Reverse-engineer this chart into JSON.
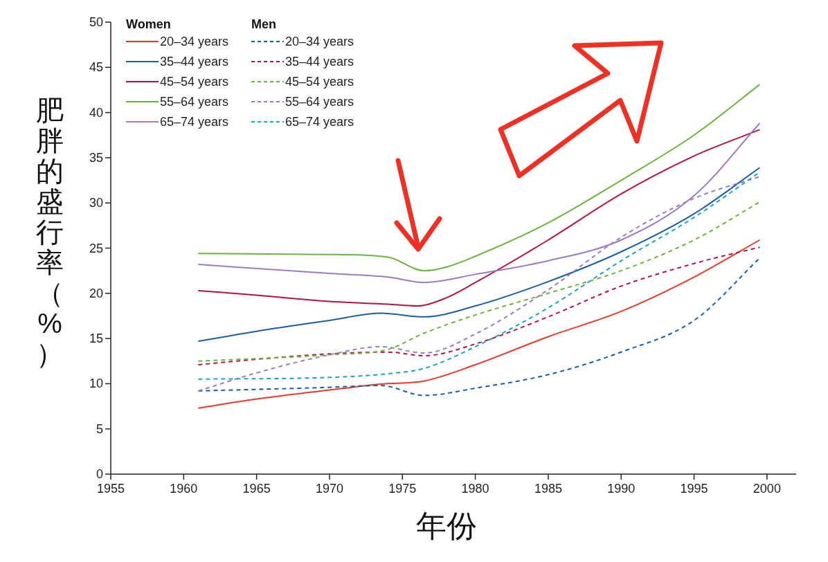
{
  "chart_data": {
    "type": "line",
    "xlabel": "年份",
    "ylabel": "肥胖的盛行率（%）",
    "legend_title": [
      "Women",
      "Men"
    ],
    "legend": "top left",
    "grid": false,
    "xlim": [
      1955,
      2002
    ],
    "xticks": [
      1955,
      1960,
      1965,
      1970,
      1975,
      1980,
      1985,
      1990,
      1995,
      2000
    ],
    "ylim": [
      0,
      50
    ],
    "yticks": [
      0,
      5,
      10,
      15,
      20,
      25,
      30,
      35,
      40,
      45,
      50
    ],
    "series": [
      {
        "name": "20–34 years",
        "color": "#e8392b",
        "line_style": "solid",
        "x": [
          1961,
          1965,
          1970,
          1973.5,
          1976.5,
          1980,
          1985,
          1990,
          1995,
          1999.5
        ],
        "values": [
          7.3,
          8.3,
          9.3,
          9.95,
          10.3,
          12.1,
          15.2,
          18.0,
          21.8,
          25.9
        ]
      },
      {
        "name": "35–44 years",
        "color": "#1a5ea0",
        "line_style": "solid",
        "x": [
          1961,
          1965,
          1970,
          1973.5,
          1976.5,
          1980,
          1985,
          1990,
          1995,
          1999.5
        ],
        "values": [
          14.7,
          15.8,
          17.0,
          17.8,
          17.4,
          18.6,
          21.3,
          24.6,
          28.8,
          33.9
        ]
      },
      {
        "name": "45–54 years",
        "color": "#b5133f",
        "line_style": "solid",
        "x": [
          1961,
          1965,
          1970,
          1974,
          1976,
          1978,
          1980,
          1985,
          1990,
          1995,
          1999.5
        ],
        "values": [
          20.3,
          19.8,
          19.1,
          18.8,
          18.6,
          19.5,
          21.2,
          25.9,
          31.0,
          35.2,
          38.1
        ]
      },
      {
        "name": "55–64 years",
        "color": "#6db33f",
        "line_style": "solid",
        "x": [
          1961,
          1970,
          1974,
          1976.5,
          1978,
          1980,
          1985,
          1990,
          1995,
          1999.5
        ],
        "values": [
          24.4,
          24.3,
          24.0,
          22.5,
          22.9,
          24.1,
          27.8,
          32.5,
          37.5,
          43.1
        ]
      },
      {
        "name": "65–74 years",
        "color": "#9b7bc0",
        "line_style": "solid",
        "x": [
          1961,
          1970,
          1974,
          1976.5,
          1980,
          1985,
          1990,
          1995,
          1999.5
        ],
        "values": [
          23.2,
          22.2,
          21.8,
          21.2,
          22.1,
          23.6,
          25.9,
          30.8,
          38.8
        ]
      },
      {
        "name": "20–34 years",
        "color": "#1a5ea0",
        "line_style": "dashed",
        "x": [
          1961,
          1970,
          1973.5,
          1976.5,
          1980,
          1985,
          1990,
          1995,
          1999.5
        ],
        "values": [
          9.2,
          9.6,
          9.8,
          8.7,
          9.5,
          11.0,
          13.5,
          17.0,
          23.9
        ]
      },
      {
        "name": "35–44 years",
        "color": "#b5133f",
        "line_style": "dashed",
        "x": [
          1961,
          1965,
          1970,
          1974,
          1976.5,
          1980,
          1985,
          1990,
          1995,
          1999.5
        ],
        "values": [
          12.1,
          12.7,
          13.3,
          13.5,
          13.1,
          14.4,
          17.4,
          20.8,
          23.3,
          25.1
        ]
      },
      {
        "name": "45–54 years",
        "color": "#6db33f",
        "line_style": "dashed",
        "x": [
          1961,
          1970,
          1974,
          1976.5,
          1980,
          1985,
          1990,
          1995,
          1999.5
        ],
        "values": [
          12.5,
          13.2,
          13.8,
          15.6,
          17.6,
          20.0,
          22.5,
          25.9,
          30.1
        ]
      },
      {
        "name": "55–64 years",
        "color": "#9b7bc0",
        "line_style": "dashed",
        "x": [
          1961,
          1965,
          1970,
          1973.5,
          1976.5,
          1980,
          1985,
          1990,
          1995,
          1999.5
        ],
        "values": [
          9.2,
          11.2,
          13.2,
          14.1,
          13.4,
          15.5,
          20.4,
          26.2,
          30.5,
          32.9
        ]
      },
      {
        "name": "65–74 years",
        "color": "#1ba3c6",
        "line_style": "dashed",
        "x": [
          1961,
          1970,
          1974,
          1976.5,
          1980,
          1985,
          1990,
          1995,
          1999.5
        ],
        "values": [
          10.5,
          10.7,
          11.1,
          11.7,
          14.1,
          18.4,
          23.6,
          28.4,
          33.4
        ]
      }
    ]
  }
}
